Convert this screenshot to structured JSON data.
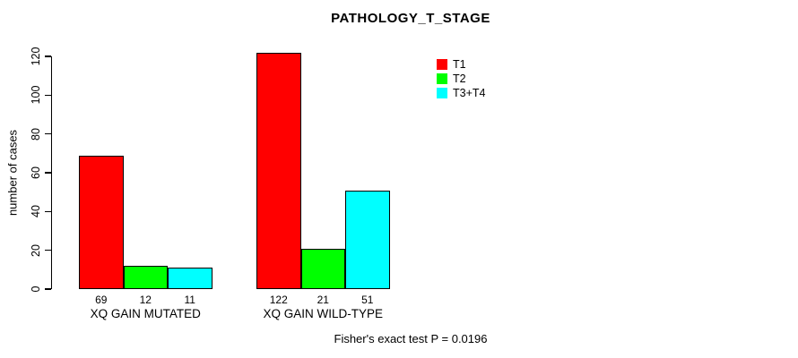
{
  "chart_data": {
    "type": "bar",
    "title": "PATHOLOGY_T_STAGE",
    "xlabel": "",
    "ylabel": "number of cases",
    "ylim": [
      0,
      120
    ],
    "yticks": [
      0,
      20,
      40,
      60,
      80,
      100,
      120
    ],
    "grid": false,
    "legend_position": "top-right",
    "categories": [
      "XQ GAIN MUTATED",
      "XQ GAIN WILD-TYPE"
    ],
    "series": [
      {
        "name": "T1",
        "color": "#ff0000",
        "values": [
          69,
          122
        ]
      },
      {
        "name": "T2",
        "color": "#00ff00",
        "values": [
          12,
          21
        ]
      },
      {
        "name": "T3+T4",
        "color": "#00ffff",
        "values": [
          11,
          51
        ]
      }
    ],
    "bar_value_labels": [
      [
        "69",
        "12",
        "11"
      ],
      [
        "122",
        "21",
        "51"
      ]
    ],
    "annotation": "Fisher's exact test P = 0.0196"
  }
}
